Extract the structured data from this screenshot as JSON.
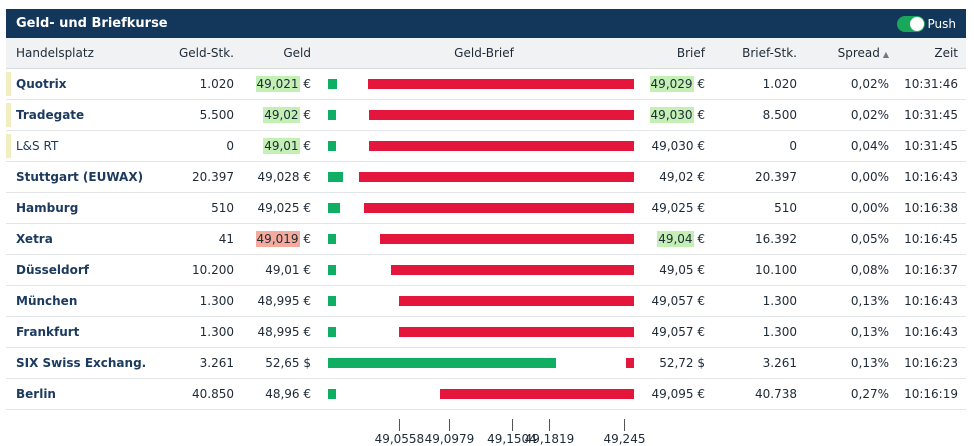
{
  "widget": {
    "title": "Geld- und Briefkurse",
    "push_label": "Push",
    "push_enabled": true
  },
  "columns": {
    "venue": "Handelsplatz",
    "bid_size": "Geld-Stk.",
    "bid": "Geld",
    "spread_bar": "Geld-Brief",
    "ask": "Brief",
    "ask_size": "Brief-Stk.",
    "spread": "Spread",
    "time": "Zeit"
  },
  "colors": {
    "header_bg": "#13375b",
    "bid_bar": "#0fae62",
    "ask_bar": "#e4163b",
    "highlight_up": "#c4f0b6",
    "highlight_down": "#f5aa9c",
    "live_marker": "#f2eec0"
  },
  "scale": {
    "min": 49.02,
    "max": 49.275
  },
  "rows": [
    {
      "name": "Quotrix",
      "live": true,
      "bold": true,
      "bid_size": "1.020",
      "bid": "49,021",
      "bid_cur": " €",
      "bid_hl": "green",
      "ask": "49,029",
      "ask_cur": " €",
      "ask_hl": "green",
      "ask_size": "1.020",
      "spread": "0,02%",
      "time": "10:31:46",
      "bid_val": 49.021,
      "ask_val": 49.029
    },
    {
      "name": "Tradegate",
      "live": true,
      "bold": true,
      "bid_size": "5.500",
      "bid": "49,02",
      "bid_cur": " €",
      "bid_hl": "green",
      "ask": "49,030",
      "ask_cur": " €",
      "ask_hl": "green",
      "ask_size": "8.500",
      "spread": "0,02%",
      "time": "10:31:45",
      "bid_val": 49.02,
      "ask_val": 49.03
    },
    {
      "name": "L&S RT",
      "live": true,
      "bold": false,
      "bid_size": "0",
      "bid": "49,01",
      "bid_cur": " €",
      "bid_hl": "green",
      "ask": "49,030",
      "ask_cur": " €",
      "ask_hl": "",
      "ask_size": "0",
      "spread": "0,04%",
      "time": "10:31:45",
      "bid_val": 49.01,
      "ask_val": 49.03
    },
    {
      "name": "Stuttgart (EUWAX)",
      "live": false,
      "bold": true,
      "bid_size": "20.397",
      "bid": "49,028",
      "bid_cur": " €",
      "bid_hl": "",
      "ask": "49,02",
      "ask_cur": " €",
      "ask_hl": "",
      "ask_size": "20.397",
      "spread": "0,00%",
      "time": "10:16:43",
      "bid_val": 49.028,
      "ask_val": 49.02
    },
    {
      "name": "Hamburg",
      "live": false,
      "bold": true,
      "bid_size": "510",
      "bid": "49,025",
      "bid_cur": " €",
      "bid_hl": "",
      "ask": "49,025",
      "ask_cur": " €",
      "ask_hl": "",
      "ask_size": "510",
      "spread": "0,00%",
      "time": "10:16:38",
      "bid_val": 49.025,
      "ask_val": 49.025
    },
    {
      "name": "Xetra",
      "live": false,
      "bold": true,
      "bid_size": "41",
      "bid": "49,019",
      "bid_cur": " €",
      "bid_hl": "red",
      "ask": "49,04",
      "ask_cur": " €",
      "ask_hl": "green",
      "ask_size": "16.392",
      "spread": "0,05%",
      "time": "10:16:45",
      "bid_val": 49.019,
      "ask_val": 49.04
    },
    {
      "name": "Düsseldorf",
      "live": false,
      "bold": true,
      "bid_size": "10.200",
      "bid": "49,01",
      "bid_cur": " €",
      "bid_hl": "",
      "ask": "49,05",
      "ask_cur": " €",
      "ask_hl": "",
      "ask_size": "10.100",
      "spread": "0,08%",
      "time": "10:16:37",
      "bid_val": 49.01,
      "ask_val": 49.05
    },
    {
      "name": "München",
      "live": false,
      "bold": true,
      "bid_size": "1.300",
      "bid": "48,995",
      "bid_cur": " €",
      "bid_hl": "",
      "ask": "49,057",
      "ask_cur": " €",
      "ask_hl": "",
      "ask_size": "1.300",
      "spread": "0,13%",
      "time": "10:16:43",
      "bid_val": 48.995,
      "ask_val": 49.057
    },
    {
      "name": "Frankfurt",
      "live": false,
      "bold": true,
      "bid_size": "1.300",
      "bid": "48,995",
      "bid_cur": " €",
      "bid_hl": "",
      "ask": "49,057",
      "ask_cur": " €",
      "ask_hl": "",
      "ask_size": "1.300",
      "spread": "0,13%",
      "time": "10:16:43",
      "bid_val": 48.995,
      "ask_val": 49.057
    },
    {
      "name": "SIX Swiss Exchang.",
      "live": false,
      "bold": true,
      "bid_size": "3.261",
      "bid": "52,65",
      "bid_cur": " $",
      "bid_hl": "",
      "ask": "52,72",
      "ask_cur": " $",
      "ask_hl": "",
      "ask_size": "3.261",
      "spread": "0,13%",
      "time": "10:16:23",
      "bid_val": 52.65,
      "ask_val": 52.72
    },
    {
      "name": "Berlin",
      "live": false,
      "bold": true,
      "bid_size": "40.850",
      "bid": "48,96",
      "bid_cur": " €",
      "bid_hl": "",
      "ask": "49,095",
      "ask_cur": " €",
      "ask_hl": "",
      "ask_size": "40.738",
      "spread": "0,27%",
      "time": "10:16:19",
      "bid_val": 48.96,
      "ask_val": 49.095
    }
  ],
  "axis_ticks": [
    {
      "label": "49,0558",
      "value": 49.0558
    },
    {
      "label": "49,0979",
      "value": 49.0979
    },
    {
      "label": "49,1504",
      "value": 49.1504
    },
    {
      "label": "49,1819",
      "value": 49.1819
    },
    {
      "label": "49,245",
      "value": 49.245
    }
  ]
}
